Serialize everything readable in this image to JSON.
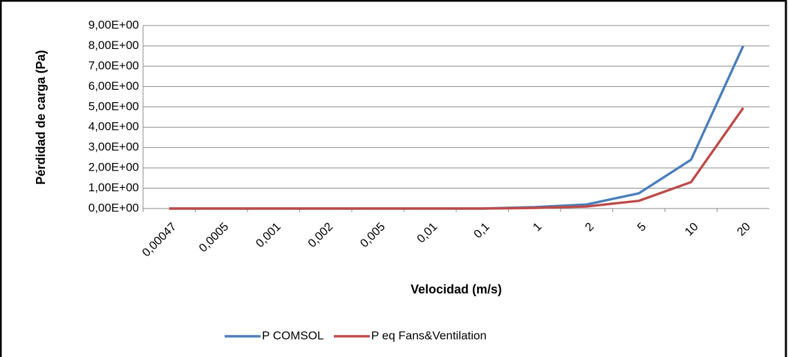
{
  "chart_data": {
    "type": "line",
    "x_label": "Velocidad (m/s)",
    "y_label": "Pérdidad de carga (Pa)",
    "categories": [
      "0,00047",
      "0,0005",
      "0,001",
      "0,002",
      "0,005",
      "0,01",
      "0,1",
      "1",
      "2",
      "5",
      "10",
      "20"
    ],
    "series": [
      {
        "name": "P COMSOL",
        "color": "#4a7ebb",
        "values": [
          0,
          0,
          0,
          0,
          0,
          0,
          0,
          0.07,
          0.2,
          0.75,
          2.4,
          8.0
        ]
      },
      {
        "name": "P eq Fans&Ventilation",
        "color": "#be4b48",
        "values": [
          0,
          0,
          0,
          0,
          0,
          0,
          0,
          0.03,
          0.1,
          0.38,
          1.3,
          4.95
        ]
      }
    ],
    "ylim": [
      0,
      9
    ],
    "yticks": [
      {
        "value": 0,
        "label": "0,00E+00"
      },
      {
        "value": 1,
        "label": "1,00E+00"
      },
      {
        "value": 2,
        "label": "2,00E+00"
      },
      {
        "value": 3,
        "label": "3,00E+00"
      },
      {
        "value": 4,
        "label": "4,00E+00"
      },
      {
        "value": 5,
        "label": "5,00E+00"
      },
      {
        "value": 6,
        "label": "6,00E+00"
      },
      {
        "value": 7,
        "label": "7,00E+00"
      },
      {
        "value": 8,
        "label": "8,00E+00"
      },
      {
        "value": 9,
        "label": "9,00E+00"
      }
    ],
    "grid": true,
    "legend": "bottom"
  }
}
